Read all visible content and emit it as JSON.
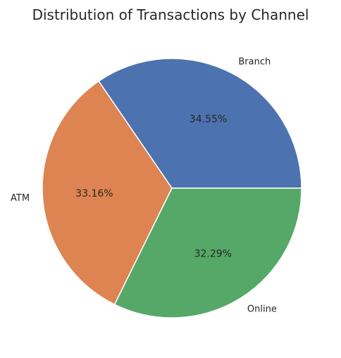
{
  "chart_data": {
    "type": "pie",
    "title": "Distribution of Transactions by Channel",
    "categories": [
      "Branch",
      "ATM",
      "Online"
    ],
    "values": [
      34.55,
      33.16,
      32.29
    ],
    "percent_labels": [
      "34.55%",
      "33.16%",
      "32.29%"
    ],
    "colors": [
      "#4c72b0",
      "#dd8452",
      "#55a868"
    ],
    "start_angle_deg": 0,
    "direction": "counterclockwise",
    "legend": "none"
  }
}
